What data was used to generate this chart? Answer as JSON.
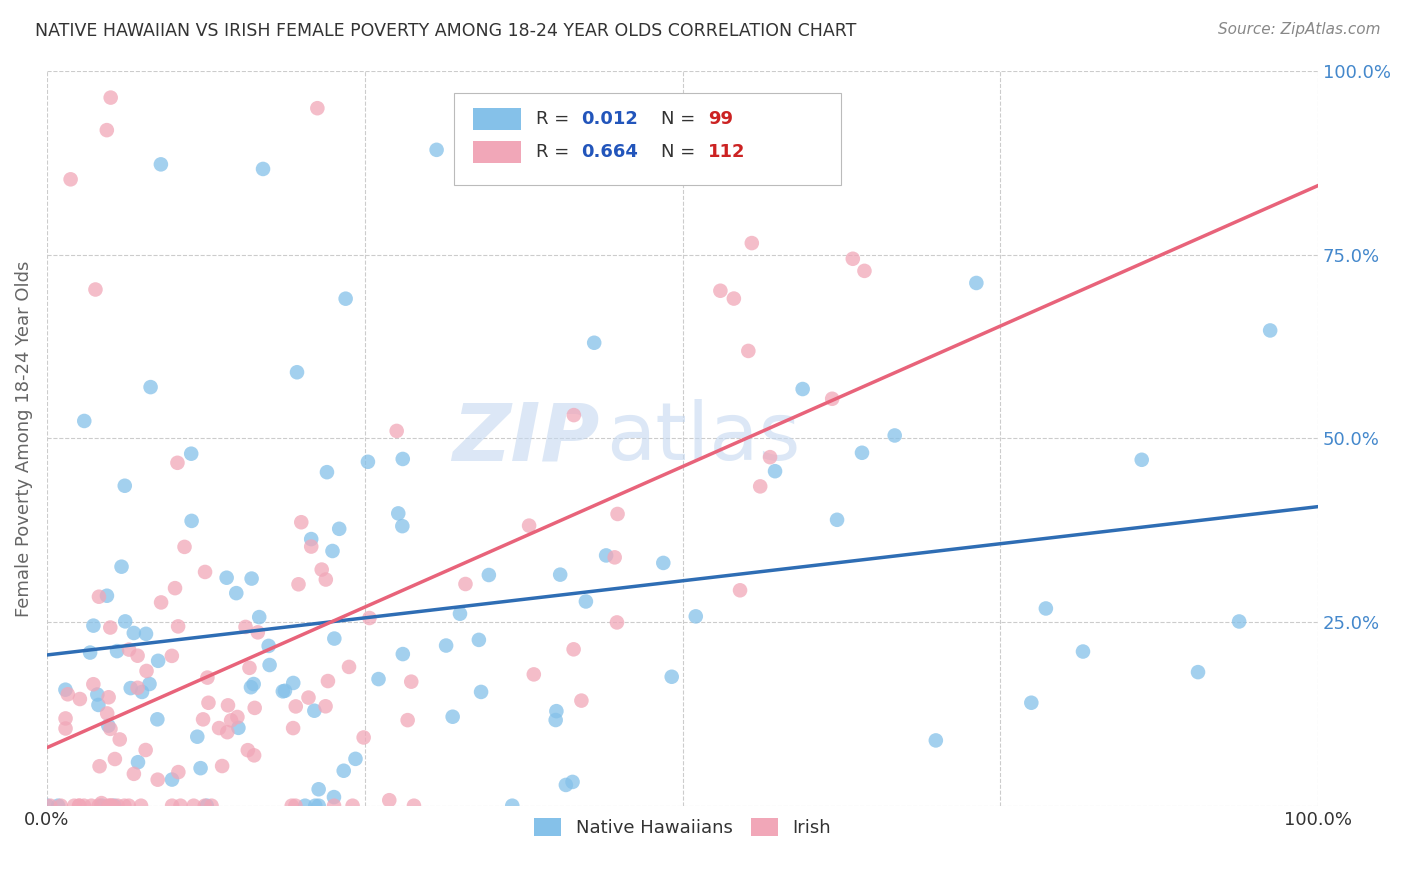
{
  "title": "NATIVE HAWAIIAN VS IRISH FEMALE POVERTY AMONG 18-24 YEAR OLDS CORRELATION CHART",
  "source": "Source: ZipAtlas.com",
  "ylabel": "Female Poverty Among 18-24 Year Olds",
  "xlabel": "",
  "xlim": [
    0,
    1
  ],
  "ylim": [
    0,
    1
  ],
  "blue_color": "#85C1E9",
  "pink_color": "#F1A7B8",
  "line_blue": "#2E6DB4",
  "line_pink": "#E8637A",
  "watermark_zip": "ZIP",
  "watermark_atlas": "atlas",
  "background_color": "#FFFFFF",
  "grid_color": "#CCCCCC",
  "title_color": "#333333",
  "axis_label_color": "#666666",
  "right_tick_color": "#4488CC",
  "N_nh": 99,
  "N_irish": 112,
  "R_nh": 0.012,
  "R_irish": 0.664,
  "legend_R_color": "#2255BB",
  "legend_N_color": "#CC2222",
  "legend_text_color": "#333333"
}
